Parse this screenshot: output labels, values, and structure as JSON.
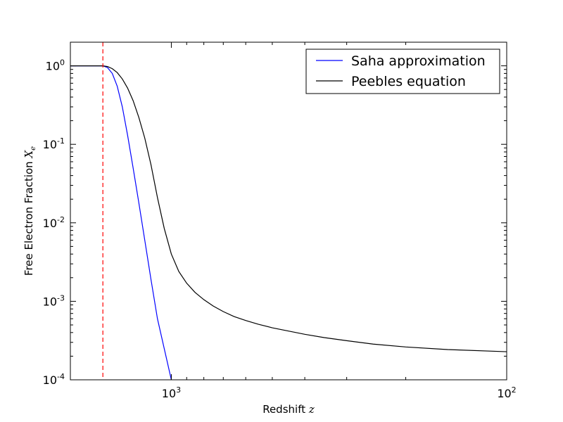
{
  "chart_data": {
    "type": "line",
    "xlabel": "Redshift",
    "xlabel_var": "z",
    "ylabel": "Free Electron Fraction",
    "ylabel_var": "X",
    "ylabel_sub": "e",
    "x_scale": "log",
    "y_scale": "log",
    "x_axis_direction": "decreasing",
    "xlim": [
      2000,
      100
    ],
    "ylim": [
      0.0001,
      2
    ],
    "x_ticks": [
      {
        "value": 1000,
        "base": "10",
        "exp": "3"
      },
      {
        "value": 100,
        "base": "10",
        "exp": "2"
      }
    ],
    "y_ticks": [
      {
        "value": 1,
        "base": "10",
        "exp": "0"
      },
      {
        "value": 0.1,
        "base": "10",
        "exp": "-1"
      },
      {
        "value": 0.01,
        "base": "10",
        "exp": "-2"
      },
      {
        "value": 0.001,
        "base": "10",
        "exp": "-3"
      },
      {
        "value": 0.0001,
        "base": "10",
        "exp": "-4"
      }
    ],
    "grid": false,
    "legend_position": "top-right",
    "vline": {
      "x": 1600,
      "color": "#ff0000",
      "style": "dashed"
    },
    "series": [
      {
        "name": "Saha approximation",
        "color": "#0000ff",
        "x": [
          2000,
          1700,
          1600,
          1550,
          1500,
          1450,
          1400,
          1350,
          1300,
          1250,
          1200,
          1150,
          1100,
          1050,
          1000
        ],
        "y": [
          1.0,
          1.0,
          1.0,
          0.95,
          0.8,
          0.55,
          0.3,
          0.13,
          0.05,
          0.018,
          0.006,
          0.0019,
          0.0006,
          0.00025,
          0.0001
        ]
      },
      {
        "name": "Peebles equation",
        "color": "#000000",
        "x": [
          2000,
          1700,
          1600,
          1550,
          1500,
          1450,
          1400,
          1350,
          1300,
          1250,
          1200,
          1150,
          1100,
          1050,
          1000,
          950,
          900,
          850,
          800,
          750,
          700,
          650,
          600,
          550,
          500,
          450,
          400,
          350,
          300,
          250,
          200,
          150,
          100
        ],
        "y": [
          1.0,
          1.0,
          1.0,
          0.98,
          0.92,
          0.82,
          0.68,
          0.52,
          0.36,
          0.22,
          0.12,
          0.055,
          0.021,
          0.0085,
          0.004,
          0.0024,
          0.0017,
          0.0013,
          0.00105,
          0.00087,
          0.00074,
          0.00064,
          0.00057,
          0.00051,
          0.00046,
          0.00042,
          0.00038,
          0.000345,
          0.000315,
          0.000285,
          0.000262,
          0.000243,
          0.000228
        ]
      }
    ]
  }
}
